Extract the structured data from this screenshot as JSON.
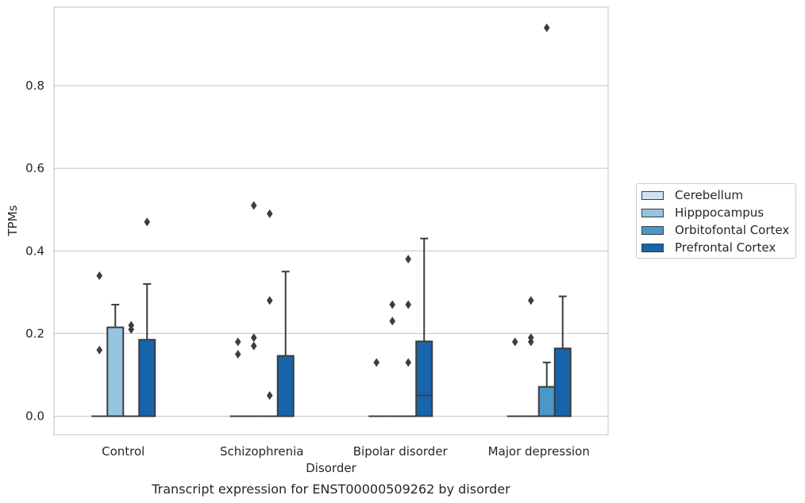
{
  "chart_data": {
    "type": "box",
    "title": "Transcript expression for ENST00000509262 by disorder",
    "xlabel": "Disorder",
    "ylabel": "TPMs",
    "ylim": [
      -0.045,
      0.99
    ],
    "yticks": [
      "0.0",
      "0.2",
      "0.4",
      "0.6",
      "0.8"
    ],
    "ytick_values": [
      0.0,
      0.2,
      0.4,
      0.6,
      0.8
    ],
    "grid": "horizontal",
    "legend_position": "right",
    "categories": [
      "Control",
      "Schizophrenia",
      "Bipolar disorder",
      "Major depression"
    ],
    "series": [
      {
        "name": "Cerebellum",
        "color": "#d0e1f2",
        "boxes": [
          {
            "q1": 0,
            "median": 0,
            "q3": 0,
            "whislo": 0,
            "whishi": 0,
            "fliers": [
              0.34,
              0.16
            ]
          },
          {
            "q1": 0,
            "median": 0,
            "q3": 0,
            "whislo": 0,
            "whishi": 0,
            "fliers": [
              0.18,
              0.15
            ]
          },
          {
            "q1": 0,
            "median": 0,
            "q3": 0,
            "whislo": 0,
            "whishi": 0,
            "fliers": [
              0.13
            ]
          },
          {
            "q1": 0,
            "median": 0,
            "q3": 0,
            "whislo": 0,
            "whishi": 0,
            "fliers": [
              0.18
            ]
          }
        ]
      },
      {
        "name": "Hipppocampus",
        "color": "#94c4df",
        "boxes": [
          {
            "q1": 0,
            "median": 0,
            "q3": 0.215,
            "whislo": 0,
            "whishi": 0.27,
            "fliers": []
          },
          {
            "q1": 0,
            "median": 0,
            "q3": 0,
            "whislo": 0,
            "whishi": 0,
            "fliers": [
              0.51,
              0.19,
              0.17
            ]
          },
          {
            "q1": 0,
            "median": 0,
            "q3": 0,
            "whislo": 0,
            "whishi": 0,
            "fliers": [
              0.27,
              0.23
            ]
          },
          {
            "q1": 0,
            "median": 0,
            "q3": 0,
            "whislo": 0,
            "whishi": 0,
            "fliers": [
              0.28,
              0.19,
              0.18
            ]
          }
        ]
      },
      {
        "name": "Orbitofontal Cortex",
        "color": "#4a98c9",
        "boxes": [
          {
            "q1": 0,
            "median": 0,
            "q3": 0,
            "whislo": 0,
            "whishi": 0,
            "fliers": [
              0.22,
              0.21
            ]
          },
          {
            "q1": 0,
            "median": 0,
            "q3": 0,
            "whislo": 0,
            "whishi": 0,
            "fliers": [
              0.49,
              0.28,
              0.05
            ]
          },
          {
            "q1": 0,
            "median": 0,
            "q3": 0,
            "whislo": 0,
            "whishi": 0,
            "fliers": [
              0.38,
              0.27,
              0.13
            ]
          },
          {
            "q1": 0,
            "median": 0,
            "q3": 0.071,
            "whislo": 0,
            "whishi": 0.13,
            "fliers": [
              0.94
            ]
          }
        ]
      },
      {
        "name": "Prefrontal Cortex",
        "color": "#1764ab",
        "boxes": [
          {
            "q1": 0,
            "median": 0,
            "q3": 0.185,
            "whislo": 0,
            "whishi": 0.32,
            "fliers": [
              0.47
            ]
          },
          {
            "q1": 0,
            "median": 0,
            "q3": 0.146,
            "whislo": 0,
            "whishi": 0.35,
            "fliers": []
          },
          {
            "q1": 0,
            "median": 0.05,
            "q3": 0.181,
            "whislo": 0,
            "whishi": 0.43,
            "fliers": []
          },
          {
            "q1": 0,
            "median": 0,
            "q3": 0.164,
            "whislo": 0,
            "whishi": 0.29,
            "fliers": []
          }
        ]
      }
    ]
  }
}
